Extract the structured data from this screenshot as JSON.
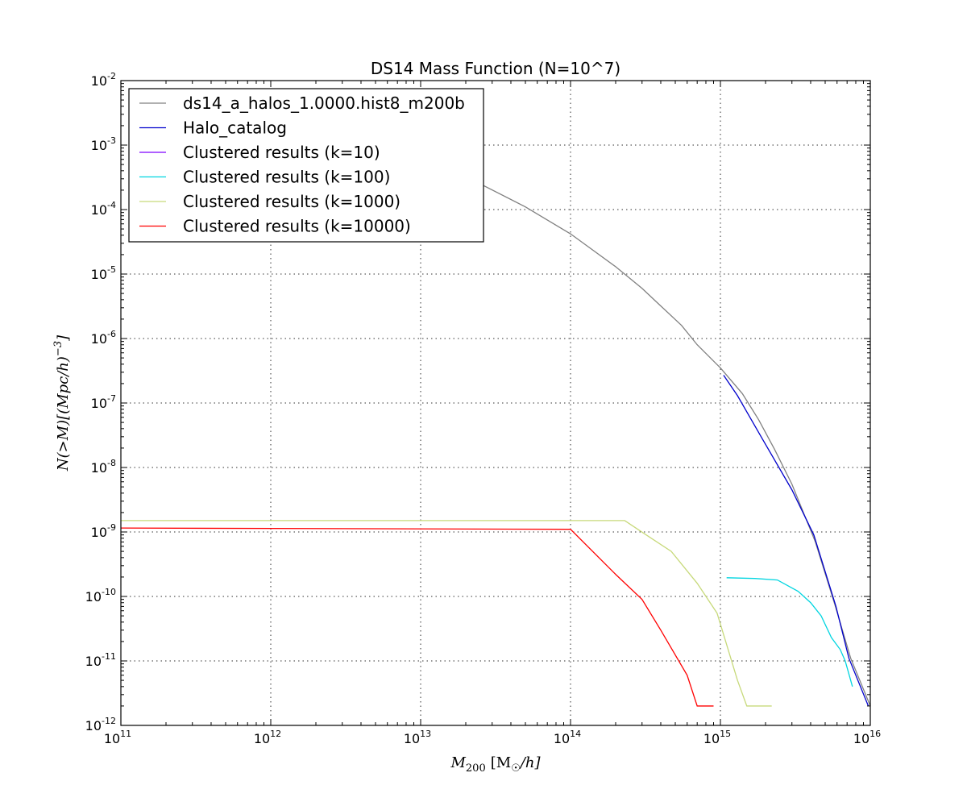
{
  "chart_data": {
    "type": "line",
    "title": "DS14 Mass Function (N=10^7)",
    "xlabel_main": "M",
    "xlabel_sub": "200",
    "xlabel_unit": "[M",
    "xlabel_unit_sub": "☉",
    "xlabel_unit_tail": "/h]",
    "ylabel": "N(>M)[(Mpc/h)",
    "ylabel_sup": "−3",
    "ylabel_tail": "]",
    "x_scale": "log",
    "y_scale": "log",
    "xlim": [
      100000000000.0,
      1e+16
    ],
    "ylim": [
      1e-12,
      0.01
    ],
    "grid": true,
    "legend_placement": "top-left",
    "x_ticks": [
      {
        "base": "10",
        "exp": "11",
        "value": 100000000000.0
      },
      {
        "base": "10",
        "exp": "12",
        "value": 1000000000000.0
      },
      {
        "base": "10",
        "exp": "13",
        "value": 10000000000000.0
      },
      {
        "base": "10",
        "exp": "14",
        "value": 100000000000000.0
      },
      {
        "base": "10",
        "exp": "15",
        "value": 1000000000000000.0
      },
      {
        "base": "10",
        "exp": "16",
        "value": 1e+16
      }
    ],
    "y_ticks": [
      {
        "base": "10",
        "exp": "-12",
        "value": 1e-12
      },
      {
        "base": "10",
        "exp": "-11",
        "value": 1e-11
      },
      {
        "base": "10",
        "exp": "-10",
        "value": 1e-10
      },
      {
        "base": "10",
        "exp": "-9",
        "value": 1e-09
      },
      {
        "base": "10",
        "exp": "-8",
        "value": 1e-08
      },
      {
        "base": "10",
        "exp": "-7",
        "value": 1e-07
      },
      {
        "base": "10",
        "exp": "-6",
        "value": 1e-06
      },
      {
        "base": "10",
        "exp": "-5",
        "value": 1e-05
      },
      {
        "base": "10",
        "exp": "-4",
        "value": 0.0001
      },
      {
        "base": "10",
        "exp": "-3",
        "value": 0.001
      },
      {
        "base": "10",
        "exp": "-2",
        "value": 0.01
      }
    ],
    "series": [
      {
        "name": "ds14_a_halos_1.0000.hist8_m200b",
        "color": "#808080",
        "points": [
          [
            25000000000000.0,
            0.00025
          ],
          [
            50000000000000.0,
            0.00011
          ],
          [
            100000000000000.0,
            4.2e-05
          ],
          [
            200000000000000.0,
            1.3e-05
          ],
          [
            300000000000000.0,
            6e-06
          ],
          [
            400000000000000.0,
            3.2e-06
          ],
          [
            550000000000000.0,
            1.6e-06
          ],
          [
            700000000000000.0,
            8e-07
          ],
          [
            1000000000000000.0,
            3.5e-07
          ],
          [
            1400000000000000.0,
            1.4e-07
          ],
          [
            1800000000000000.0,
            5.5e-08
          ],
          [
            2300000000000000.0,
            1.9e-08
          ],
          [
            3000000000000000.0,
            5.5e-09
          ],
          [
            4300000000000000.0,
            7e-10
          ],
          [
            5800000000000000.0,
            7.5e-11
          ],
          [
            7400000000000000.0,
            1.1e-11
          ],
          [
            1e+16,
            2e-12
          ]
        ]
      },
      {
        "name": "Halo_catalog",
        "color": "#0000cc",
        "points": [
          [
            1050000000000000.0,
            2.7e-07
          ],
          [
            1300000000000000.0,
            1.3e-07
          ],
          [
            1900000000000000.0,
            2.8e-08
          ],
          [
            3000000000000000.0,
            4.5e-09
          ],
          [
            4200000000000000.0,
            9e-10
          ],
          [
            5900000000000000.0,
            7e-11
          ],
          [
            7200000000000000.0,
            1.1e-11
          ],
          [
            9700000000000000.0,
            2e-12
          ]
        ]
      },
      {
        "name": "Clustered results (k=10)",
        "color": "#7f00ff",
        "points": []
      },
      {
        "name": "Clustered results (k=100)",
        "color": "#00d5e0",
        "points": [
          [
            1100000000000000.0,
            1.95e-10
          ],
          [
            1700000000000000.0,
            1.9e-10
          ],
          [
            2400000000000000.0,
            1.8e-10
          ],
          [
            3300000000000000.0,
            1.2e-10
          ],
          [
            4000000000000000.0,
            8e-11
          ],
          [
            4700000000000000.0,
            5e-11
          ],
          [
            5500000000000000.0,
            2.3e-11
          ],
          [
            6300000000000000.0,
            1.5e-11
          ],
          [
            6800000000000000.0,
            1e-11
          ],
          [
            7600000000000000.0,
            4e-12
          ]
        ]
      },
      {
        "name": "Clustered results (k=1000)",
        "color": "#c7d97a",
        "points": [
          [
            100000000000.0,
            1.5e-09
          ],
          [
            230000000000000.0,
            1.5e-09
          ],
          [
            320000000000000.0,
            9e-10
          ],
          [
            470000000000000.0,
            5e-10
          ],
          [
            700000000000000.0,
            1.6e-10
          ],
          [
            950000000000000.0,
            5.5e-11
          ],
          [
            1300000000000000.0,
            5e-12
          ],
          [
            1500000000000000.0,
            2e-12
          ],
          [
            2200000000000000.0,
            2e-12
          ]
        ]
      },
      {
        "name": "Clustered results (k=10000)",
        "color": "#ff0000",
        "points": [
          [
            100000000000.0,
            1.15e-09
          ],
          [
            100000000000000.0,
            1.1e-09
          ],
          [
            200000000000000.0,
            2.2e-10
          ],
          [
            300000000000000.0,
            9e-11
          ],
          [
            400000000000000.0,
            3e-11
          ],
          [
            600000000000000.0,
            6e-12
          ],
          [
            700000000000000.0,
            2e-12
          ],
          [
            900000000000000.0,
            2e-12
          ]
        ]
      }
    ]
  }
}
